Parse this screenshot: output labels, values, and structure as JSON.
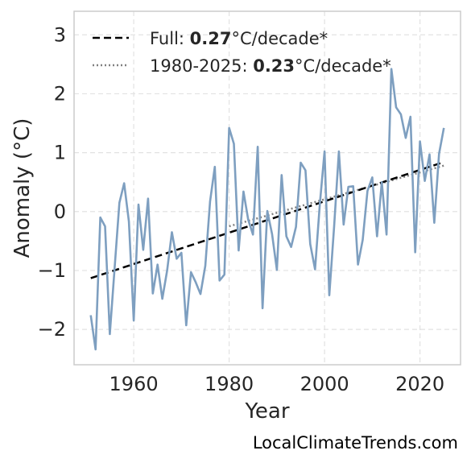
{
  "chart_data": {
    "type": "line",
    "title": "",
    "xlabel": "Year",
    "ylabel": "Anomaly (°C)",
    "xlim": [
      1947.5,
      2028.5
    ],
    "ylim": [
      -2.6,
      3.4
    ],
    "x_ticks": [
      1960,
      1980,
      2000,
      2020
    ],
    "y_ticks": [
      3,
      2,
      1,
      0,
      -1,
      -2
    ],
    "y_tick_labels": [
      "3",
      "2",
      "1",
      "0",
      "−1",
      "−2"
    ],
    "grid": true,
    "legend_position": "top-left",
    "series": [
      {
        "color": "#7e9fc0",
        "x": [
          1951,
          1952,
          1953,
          1954,
          1955,
          1956,
          1957,
          1958,
          1959,
          1960,
          1961,
          1962,
          1963,
          1964,
          1965,
          1966,
          1967,
          1968,
          1969,
          1970,
          1971,
          1972,
          1973,
          1974,
          1975,
          1976,
          1977,
          1978,
          1979,
          1980,
          1981,
          1982,
          1983,
          1984,
          1985,
          1986,
          1987,
          1988,
          1989,
          1990,
          1991,
          1992,
          1993,
          1994,
          1995,
          1996,
          1997,
          1998,
          1999,
          2000,
          2001,
          2002,
          2003,
          2004,
          2005,
          2006,
          2007,
          2008,
          2009,
          2010,
          2011,
          2012,
          2013,
          2014,
          2015,
          2016,
          2017,
          2018,
          2019,
          2020,
          2021,
          2022,
          2023,
          2024,
          2025
        ],
        "y": [
          -1.76,
          -2.34,
          -0.1,
          -0.25,
          -2.08,
          -0.95,
          0.15,
          0.48,
          -0.17,
          -1.85,
          0.12,
          -0.65,
          0.22,
          -1.39,
          -0.9,
          -1.48,
          -1.0,
          -0.35,
          -0.8,
          -0.7,
          -1.93,
          -1.03,
          -1.2,
          -1.4,
          -0.92,
          0.17,
          0.76,
          -1.17,
          -1.07,
          1.42,
          1.15,
          -0.66,
          0.34,
          -0.14,
          -0.39,
          1.1,
          -1.64,
          0.01,
          -0.38,
          -0.99,
          0.62,
          -0.42,
          -0.6,
          -0.26,
          0.83,
          0.7,
          -0.55,
          -0.98,
          0.12,
          1.02,
          -1.42,
          -0.25,
          1.02,
          -0.22,
          0.42,
          0.43,
          -0.9,
          -0.48,
          0.35,
          0.58,
          -0.42,
          0.5,
          -0.39,
          2.42,
          1.77,
          1.65,
          1.25,
          1.61,
          -0.69,
          1.19,
          0.52,
          0.97,
          -0.19,
          0.98,
          1.42
        ]
      }
    ],
    "trend_full": {
      "label_prefix": "Full: ",
      "label_value": "0.27",
      "label_suffix": "°C/decade*",
      "color": "#000000",
      "x": [
        1951,
        2025
      ],
      "y": [
        -1.13,
        0.84
      ]
    },
    "trend_recent": {
      "label_prefix": "1980-2025: ",
      "label_value": "0.23",
      "label_suffix": "°C/decade*",
      "color": "#808080",
      "x": [
        1980,
        2025
      ],
      "y": [
        -0.25,
        0.78
      ]
    }
  },
  "credit": "LocalClimateTrends.com"
}
